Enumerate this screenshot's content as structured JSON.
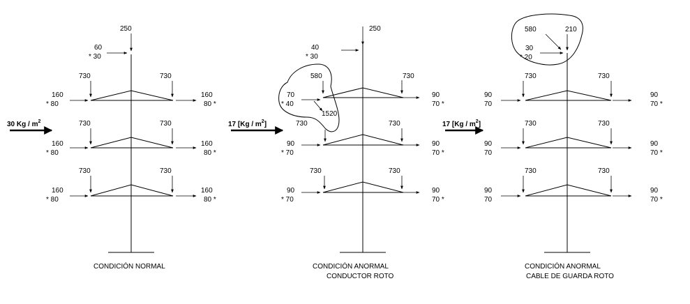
{
  "colors": {
    "ink": "#000000",
    "background": "#ffffff"
  },
  "panels": [
    {
      "caption": [
        "CONDICIÓN NORMAL"
      ],
      "wind_label": "30 Kg / m",
      "wind_exp": "2",
      "top_vertical": "250",
      "top_horizontal": [
        "60",
        "* 30"
      ],
      "levels": [
        {
          "left_vertical": "730",
          "right_vertical": "730",
          "left_horizontal": [
            "160",
            "* 80"
          ],
          "right_horizontal": [
            "160",
            "80 *"
          ]
        },
        {
          "left_vertical": "730",
          "right_vertical": "730",
          "left_horizontal": [
            "160",
            "* 80"
          ],
          "right_horizontal": [
            "160",
            "80 *"
          ]
        },
        {
          "left_vertical": "730",
          "right_vertical": "730",
          "left_horizontal": [
            "160",
            "* 80"
          ],
          "right_horizontal": [
            "160",
            "80 *"
          ]
        }
      ]
    },
    {
      "caption": [
        "CONDICIÓN ANORMAL",
        "CONDUCTOR ROTO"
      ],
      "wind_label": "17 [Kg /  m",
      "wind_exp": "2",
      "wind_close": "]",
      "top_vertical": "250",
      "top_horizontal": [
        "40",
        "* 30"
      ],
      "broken_conductor": {
        "vertical": "580",
        "horizontal": [
          "70",
          "* 40"
        ],
        "longitudinal": "1520",
        "side_vertical": "730"
      },
      "levels": [
        {
          "left_vertical": "",
          "right_vertical": "730",
          "left_horizontal": [
            "",
            ""
          ],
          "right_horizontal": [
            "90",
            "70 *"
          ]
        },
        {
          "left_vertical": "730",
          "right_vertical": "730",
          "left_horizontal": [
            "90",
            "* 70"
          ],
          "right_horizontal": [
            "90",
            "70 *"
          ]
        },
        {
          "left_vertical": "730",
          "right_vertical": "730",
          "left_horizontal": [
            "90",
            "* 70"
          ],
          "right_horizontal": [
            "90",
            "70 *"
          ]
        }
      ]
    },
    {
      "caption": [
        "CONDICIÓN ANORMAL",
        "CABLE DE GUARDA ROTO"
      ],
      "wind_label": "17 [Kg / m",
      "wind_exp": "2",
      "wind_close": "]",
      "top_vertical_left": "580",
      "top_vertical": "210",
      "top_horizontal": [
        "30",
        "* 20"
      ],
      "levels": [
        {
          "left_vertical": "730",
          "right_vertical": "730",
          "left_horizontal": [
            "90",
            "70"
          ],
          "right_horizontal": [
            "90",
            "70 *"
          ]
        },
        {
          "left_vertical": "730",
          "right_vertical": "730",
          "left_horizontal": [
            "90",
            "70"
          ],
          "right_horizontal": [
            "90",
            "70 *"
          ]
        },
        {
          "left_vertical": "730",
          "right_vertical": "730",
          "left_horizontal": [
            "90",
            "70"
          ],
          "right_horizontal": [
            "90",
            "70 *"
          ]
        }
      ]
    }
  ]
}
